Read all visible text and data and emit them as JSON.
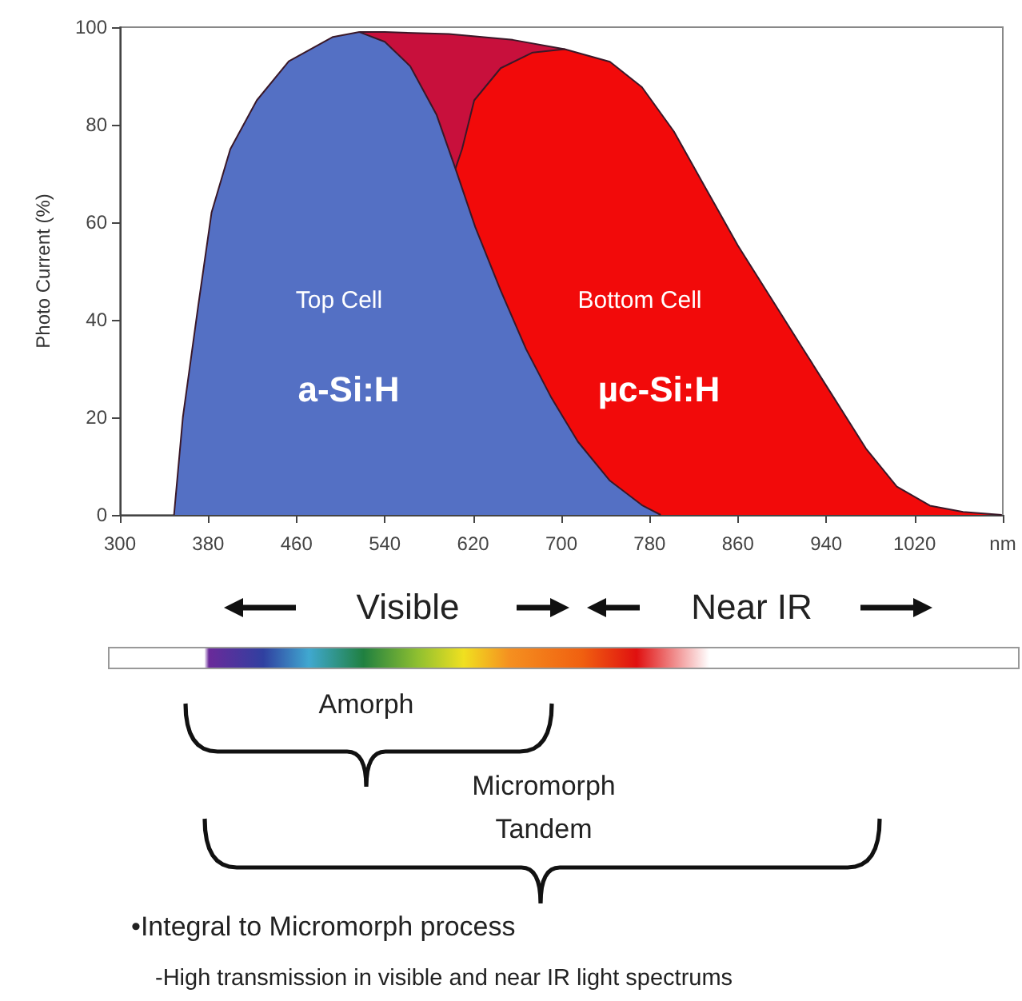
{
  "chart_data": {
    "type": "area",
    "ylabel": "Photo Current (%)",
    "xlim": [
      300,
      1100
    ],
    "xticks": [
      300,
      380,
      460,
      540,
      620,
      700,
      780,
      860,
      940,
      1020,
      {
        "value": 1100,
        "label": "nm"
      }
    ],
    "ylim": [
      0,
      100
    ],
    "yticks": [
      0,
      20,
      40,
      60,
      80,
      100
    ],
    "grid": false,
    "marker": "none",
    "series": [
      {
        "color": "#c8103c",
        "x": [
          517,
          540,
          598,
          656,
          703
        ],
        "values": [
          99,
          99,
          98.6,
          97.4,
          95.5
        ]
      },
      {
        "color": "#f20a0a",
        "x": [
          604,
          610,
          621,
          645,
          674,
          703,
          744,
          773,
          802,
          831,
          860,
          889,
          918,
          947,
          976,
          1004,
          1034,
          1064,
          1099
        ],
        "values": [
          71,
          75,
          85,
          91.6,
          94.8,
          95.5,
          92.9,
          87.7,
          78.6,
          66.9,
          55.2,
          44.8,
          34.4,
          24,
          13.6,
          5.8,
          1.9,
          0.6,
          0
        ]
      },
      {
        "color": "#5470c4",
        "x": [
          349,
          357,
          371,
          383,
          400,
          424,
          453,
          493,
          517,
          540,
          563,
          587,
          604,
          622,
          645,
          668,
          691,
          715,
          744,
          773,
          790
        ],
        "values": [
          0,
          20,
          43,
          62,
          75,
          85,
          93,
          98,
          99,
          97,
          92,
          82,
          71,
          59,
          46,
          34,
          24,
          15,
          7,
          2,
          0
        ]
      }
    ],
    "annotations": [
      "Top Cell",
      "a-Si:H",
      "Bottom Cell",
      "µc-Si:H",
      "Visible",
      "Near IR",
      "Amorph",
      "Micromorph Tandem",
      "•Integral to Micromorph process",
      "-High transmission in visible and near IR light spectrums"
    ]
  }
}
